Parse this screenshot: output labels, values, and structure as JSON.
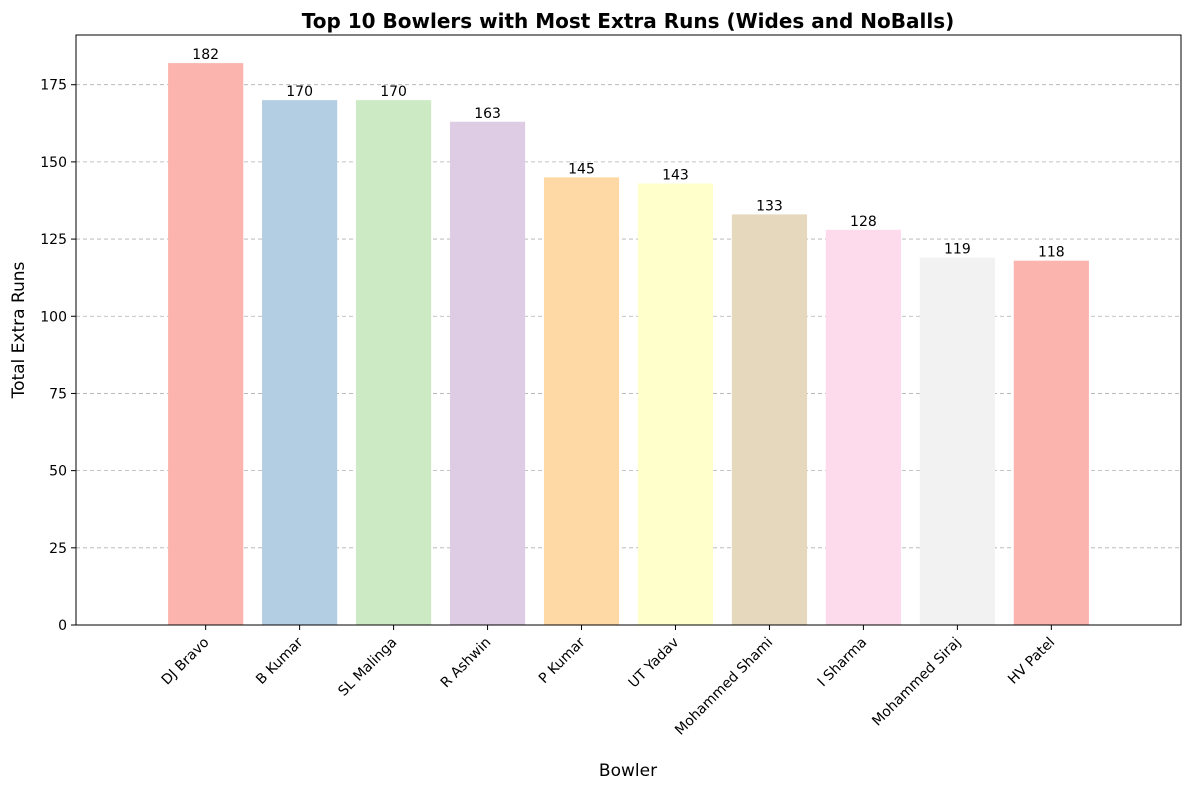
{
  "chart_data": {
    "type": "bar",
    "title": "Top 10 Bowlers with Most Extra Runs (Wides and NoBalls)",
    "xlabel": "Bowler",
    "ylabel": "Total Extra Runs",
    "categories": [
      "DJ Bravo",
      "B Kumar",
      "SL Malinga",
      "R Ashwin",
      "P Kumar",
      "UT Yadav",
      "Mohammed Shami",
      "I Sharma",
      "Mohammed Siraj",
      "HV Patel"
    ],
    "values": [
      182,
      170,
      170,
      163,
      145,
      143,
      133,
      128,
      119,
      118
    ],
    "colors": [
      "#fbb4ae",
      "#b3cde3",
      "#ccebc5",
      "#decbe4",
      "#fed9a6",
      "#ffffcc",
      "#e5d8bd",
      "#fddaec",
      "#f2f2f2",
      "#fbb4ae"
    ],
    "ylim": [
      0,
      191.1
    ],
    "yticks": [
      0,
      25,
      50,
      75,
      100,
      125,
      150,
      175
    ],
    "grid": "y-dashed",
    "legend": "none"
  }
}
